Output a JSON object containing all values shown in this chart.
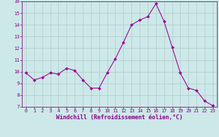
{
  "x": [
    0,
    1,
    2,
    3,
    4,
    5,
    6,
    7,
    8,
    9,
    10,
    11,
    12,
    13,
    14,
    15,
    16,
    17,
    18,
    19,
    20,
    21,
    22,
    23
  ],
  "y": [
    9.9,
    9.3,
    9.5,
    9.9,
    9.8,
    10.3,
    10.1,
    9.3,
    8.6,
    8.6,
    9.9,
    11.1,
    12.5,
    14.0,
    14.4,
    14.7,
    15.8,
    14.3,
    12.1,
    9.9,
    8.6,
    8.4,
    7.5,
    7.1
  ],
  "line_color": "#990099",
  "marker": "D",
  "marker_size": 2,
  "bg_color": "#cce8e8",
  "grid_color": "#b0c8c8",
  "xlabel": "Windchill (Refroidissement éolien,°C)",
  "xlim": [
    -0.5,
    23.5
  ],
  "ylim": [
    7,
    16
  ],
  "yticks": [
    7,
    8,
    9,
    10,
    11,
    12,
    13,
    14,
    15,
    16
  ],
  "xticks": [
    0,
    1,
    2,
    3,
    4,
    5,
    6,
    7,
    8,
    9,
    10,
    11,
    12,
    13,
    14,
    15,
    16,
    17,
    18,
    19,
    20,
    21,
    22,
    23
  ],
  "tick_color": "#880088",
  "label_color": "#880088",
  "tick_fontsize": 5.0,
  "xlabel_fontsize": 6.0,
  "ylabel_fontsize": 5.5
}
